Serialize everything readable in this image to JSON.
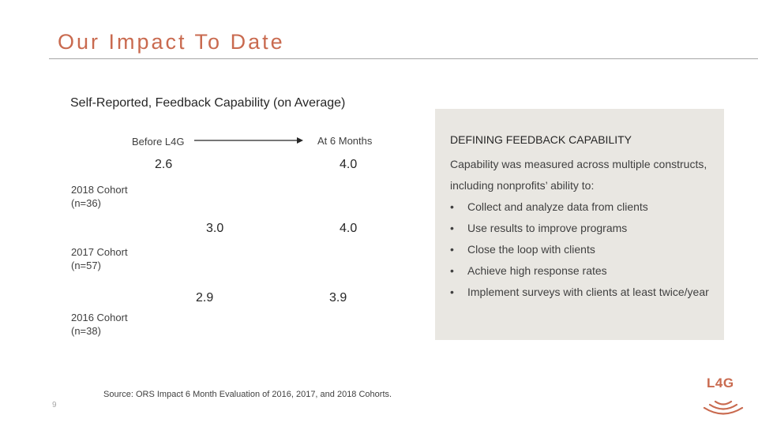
{
  "slide": {
    "title": "Our Impact To Date",
    "page_number": "9"
  },
  "chart_data": {
    "type": "table",
    "title": "Self-Reported, Feedback Capability (on Average)",
    "columns": [
      "Before L4G",
      "At 6 Months"
    ],
    "rows": [
      {
        "cohort": "2018 Cohort",
        "n": "(n=36)",
        "before": "2.6",
        "after": "4.0"
      },
      {
        "cohort": "2017 Cohort",
        "n": "(n=57)",
        "before": "3.0",
        "after": "4.0"
      },
      {
        "cohort": "2016 Cohort",
        "n": "(n=38)",
        "before": "2.9",
        "after": "3.9"
      }
    ],
    "source": "Source: ORS Impact 6 Month Evaluation of 2016, 2017, and 2018 Cohorts."
  },
  "panel": {
    "heading": "DEFINING FEEDBACK CAPABILITY",
    "intro": "Capability was measured across multiple constructs, including nonprofits’ ability to:",
    "bullet_char": "•",
    "bullets": [
      "Collect and analyze data from clients",
      "Use results to improve programs",
      "Close the loop with clients",
      "Achieve high response rates",
      "Implement surveys with clients at least twice/year"
    ]
  },
  "logo": {
    "text": "L4G",
    "color": "#c96a4f"
  }
}
